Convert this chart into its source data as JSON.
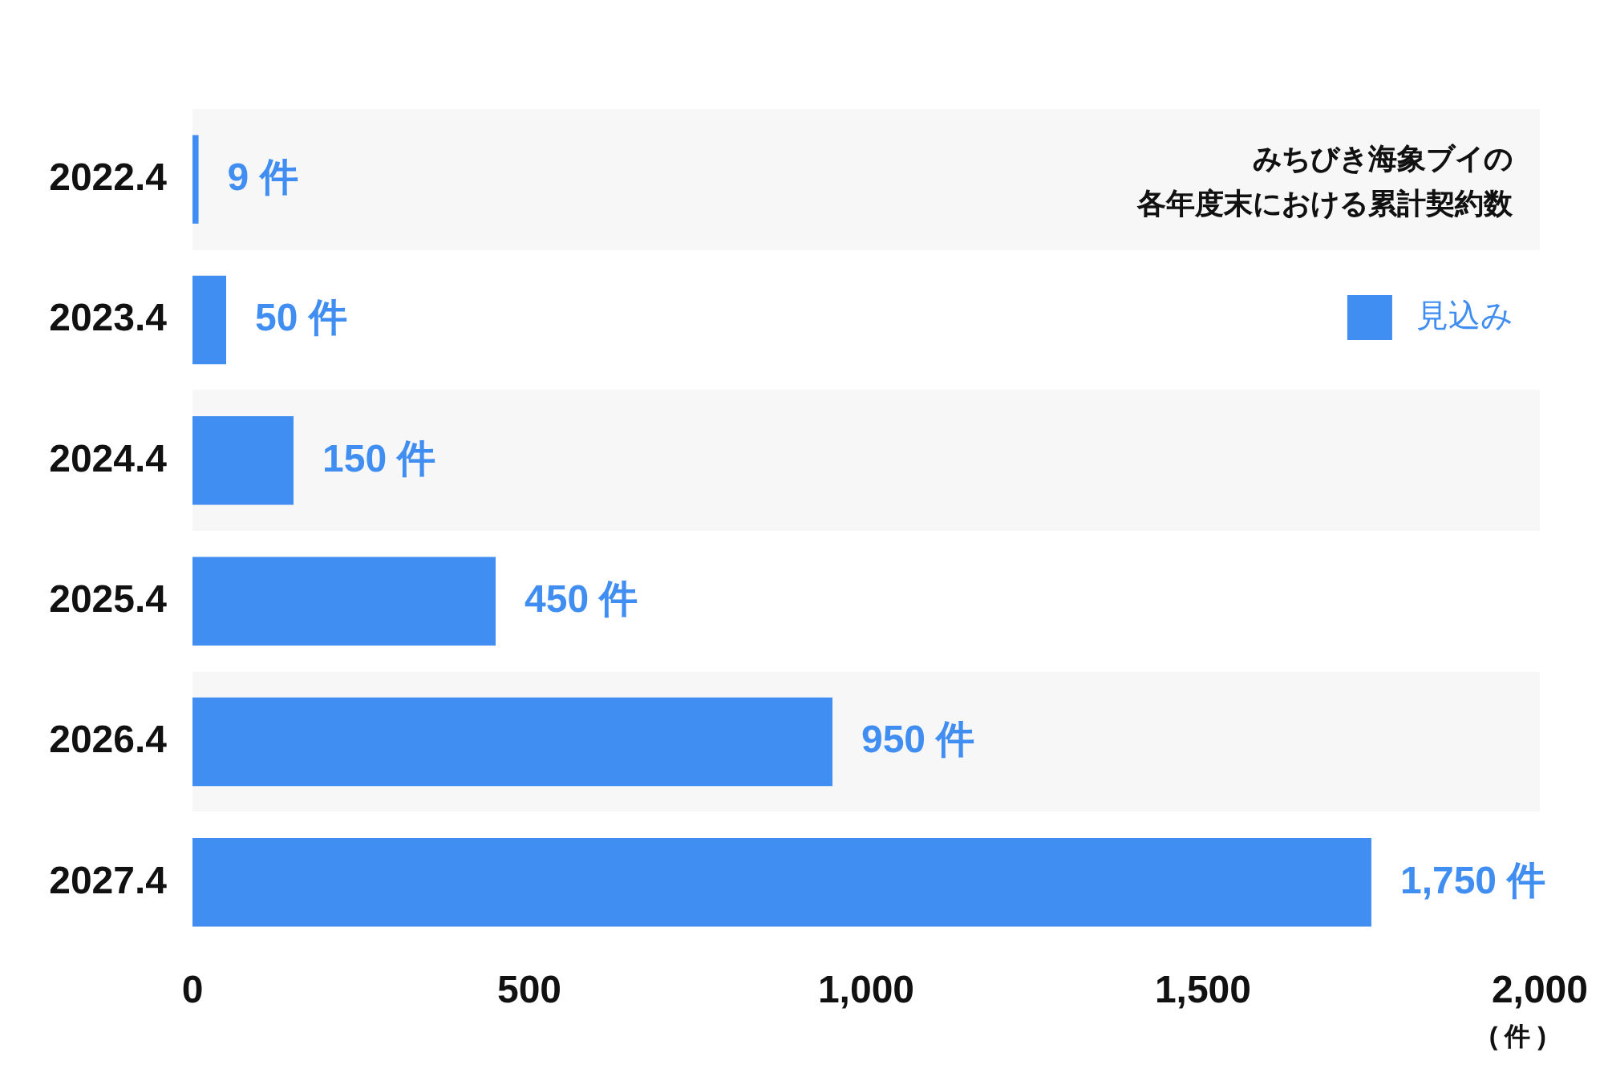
{
  "chart_data": {
    "type": "bar",
    "orientation": "horizontal",
    "title": "みちびき海象ブイの各年度末における累計契約数",
    "xlabel": "( 件 )",
    "categories": [
      "2022.4",
      "2023.4",
      "2024.4",
      "2025.4",
      "2026.4",
      "2027.4"
    ],
    "series": [
      {
        "name": "見込み",
        "color": "#418ef3",
        "values": [
          9,
          50,
          150,
          450,
          950,
          1750
        ],
        "value_labels": [
          "9 件",
          "50 件",
          "150 件",
          "450 件",
          "950 件",
          "1,750 件"
        ]
      }
    ],
    "xlim": [
      0,
      2000
    ],
    "xticks": [
      0,
      500,
      {
        "value": 1000,
        "label": "1,000"
      },
      {
        "value": 1500,
        "label": "1,500"
      },
      {
        "value": 2000,
        "label": "2,000"
      }
    ],
    "legend": "top right",
    "grid": false
  }
}
